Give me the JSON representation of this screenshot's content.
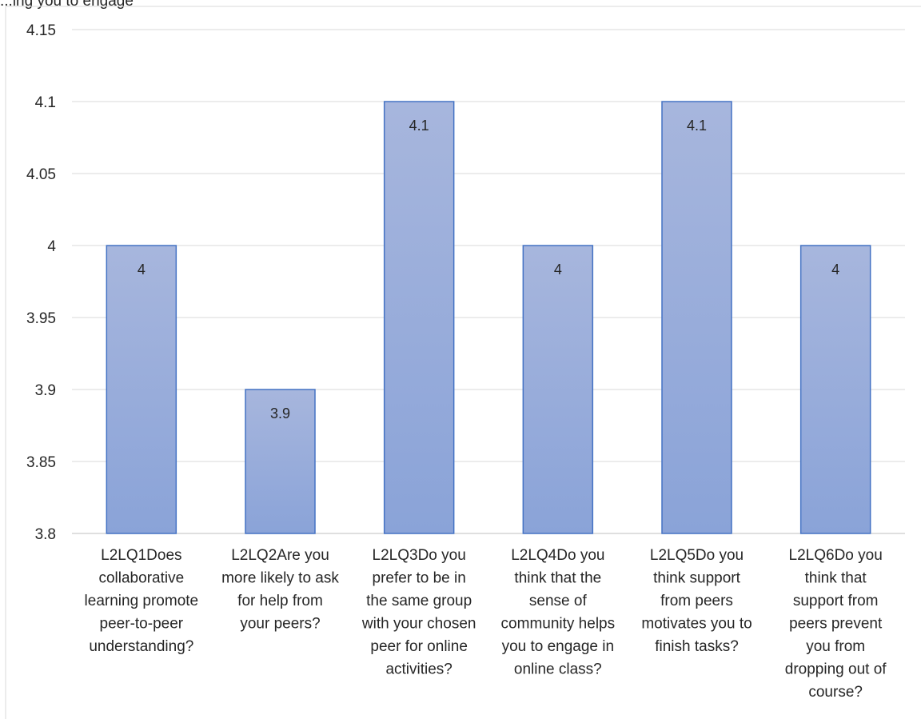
{
  "chart_title_fragment": "...ing you to engage",
  "chart_data": {
    "type": "bar",
    "categories": [
      "L2LQ1Does collaborative learning promote peer-to-peer understanding?",
      "L2LQ2Are you more likely to ask for help from your peers?",
      "L2LQ3Do you prefer to be in the same group with your chosen peer for online activities?",
      "L2LQ4Do you think that the sense of community helps you to engage in online class?",
      "L2LQ5Do you think support from peers motivates you to finish tasks?",
      "L2LQ6Do you think that support from peers prevent you from dropping out of course?"
    ],
    "category_label_lines": [
      [
        "L2LQ1Does",
        "collaborative",
        "learning promote",
        "peer-to-peer",
        "understanding?"
      ],
      [
        "L2LQ2Are you",
        "more likely to ask",
        "for help from",
        "your peers?"
      ],
      [
        "L2LQ3Do you",
        "prefer to be in",
        "the same group",
        "with your chosen",
        "peer for online",
        "activities?"
      ],
      [
        "L2LQ4Do you",
        "think that the",
        "sense of",
        "community helps",
        "you to engage in",
        "online class?"
      ],
      [
        "L2LQ5Do you",
        "think support",
        "from peers",
        "motivates you to",
        "finish tasks?"
      ],
      [
        "L2LQ6Do you",
        "think that",
        "support from",
        "peers prevent",
        "you from",
        "dropping out of",
        "course?"
      ]
    ],
    "values": [
      4,
      3.9,
      4.1,
      4,
      4.1,
      4
    ],
    "data_labels": [
      "4",
      "3.9",
      "4.1",
      "4",
      "4.1",
      "4"
    ],
    "ylim": [
      3.8,
      4.15
    ],
    "y_ticks": [
      "3.8",
      "3.85",
      "3.9",
      "3.95",
      "4",
      "4.05",
      "4.1",
      "4.15"
    ],
    "y_tick_values": [
      3.8,
      3.85,
      3.9,
      3.95,
      4,
      4.05,
      4.1,
      4.15
    ],
    "grid": true,
    "colors": {
      "bar_top": "#a7b6dd",
      "bar_bottom": "#8aa3d8",
      "bar_border": "#4472c4",
      "grid": "#d9d9d9",
      "axis": "#bfbfbf"
    }
  }
}
